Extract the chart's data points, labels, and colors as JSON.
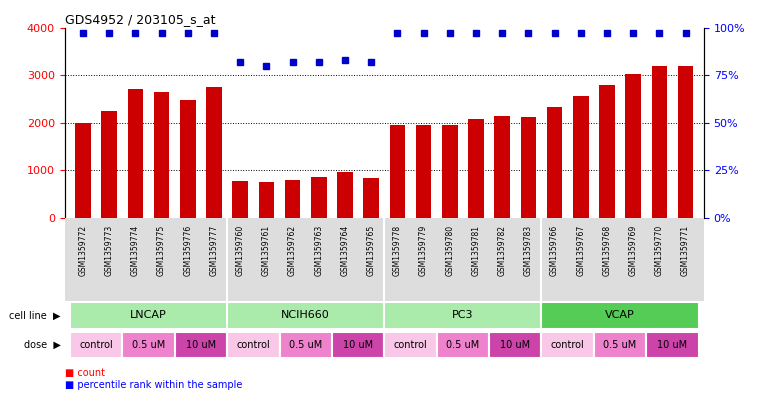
{
  "title": "GDS4952 / 203105_s_at",
  "samples": [
    "GSM1359772",
    "GSM1359773",
    "GSM1359774",
    "GSM1359775",
    "GSM1359776",
    "GSM1359777",
    "GSM1359760",
    "GSM1359761",
    "GSM1359762",
    "GSM1359763",
    "GSM1359764",
    "GSM1359765",
    "GSM1359778",
    "GSM1359779",
    "GSM1359780",
    "GSM1359781",
    "GSM1359782",
    "GSM1359783",
    "GSM1359766",
    "GSM1359767",
    "GSM1359768",
    "GSM1359769",
    "GSM1359770",
    "GSM1359771"
  ],
  "counts": [
    2000,
    2250,
    2700,
    2650,
    2480,
    2750,
    780,
    760,
    790,
    870,
    960,
    840,
    1950,
    1950,
    1960,
    2080,
    2140,
    2130,
    2340,
    2560,
    2800,
    3020,
    3200,
    3200
  ],
  "percentile_ranks": [
    97,
    97,
    97,
    97,
    97,
    97,
    82,
    80,
    82,
    82,
    83,
    82,
    97,
    97,
    97,
    97,
    97,
    97,
    97,
    97,
    97,
    97,
    97,
    97
  ],
  "cell_lines": [
    {
      "name": "LNCAP",
      "start": 0,
      "end": 6,
      "color": "#aaeaaa"
    },
    {
      "name": "NCIH660",
      "start": 6,
      "end": 12,
      "color": "#aaeaaa"
    },
    {
      "name": "PC3",
      "start": 12,
      "end": 18,
      "color": "#aaeaaa"
    },
    {
      "name": "VCAP",
      "start": 18,
      "end": 24,
      "color": "#55cc55"
    }
  ],
  "doses": [
    {
      "label": "control",
      "start": 0,
      "end": 2,
      "color": "#f9c8e8"
    },
    {
      "label": "0.5 uM",
      "start": 2,
      "end": 4,
      "color": "#ee82cc"
    },
    {
      "label": "10 uM",
      "start": 4,
      "end": 6,
      "color": "#cc44aa"
    },
    {
      "label": "control",
      "start": 6,
      "end": 8,
      "color": "#f9c8e8"
    },
    {
      "label": "0.5 uM",
      "start": 8,
      "end": 10,
      "color": "#ee82cc"
    },
    {
      "label": "10 uM",
      "start": 10,
      "end": 12,
      "color": "#cc44aa"
    },
    {
      "label": "control",
      "start": 12,
      "end": 14,
      "color": "#f9c8e8"
    },
    {
      "label": "0.5 uM",
      "start": 14,
      "end": 16,
      "color": "#ee82cc"
    },
    {
      "label": "10 uM",
      "start": 16,
      "end": 18,
      "color": "#cc44aa"
    },
    {
      "label": "control",
      "start": 18,
      "end": 20,
      "color": "#f9c8e8"
    },
    {
      "label": "0.5 uM",
      "start": 20,
      "end": 22,
      "color": "#ee82cc"
    },
    {
      "label": "10 uM",
      "start": 22,
      "end": 24,
      "color": "#cc44aa"
    }
  ],
  "bar_color": "#cc0000",
  "dot_color": "#0000cc",
  "ylim_left": [
    0,
    4000
  ],
  "ylim_right": [
    0,
    100
  ],
  "yticks_left": [
    0,
    1000,
    2000,
    3000,
    4000
  ],
  "yticks_right": [
    0,
    25,
    50,
    75,
    100
  ],
  "ytick_labels_right": [
    "0%",
    "25%",
    "50%",
    "75%",
    "100%"
  ],
  "grid_yticks": [
    1000,
    2000,
    3000
  ],
  "background_color": "#ffffff",
  "plot_bg_color": "#ffffff",
  "tick_label_bg": "#dddddd"
}
